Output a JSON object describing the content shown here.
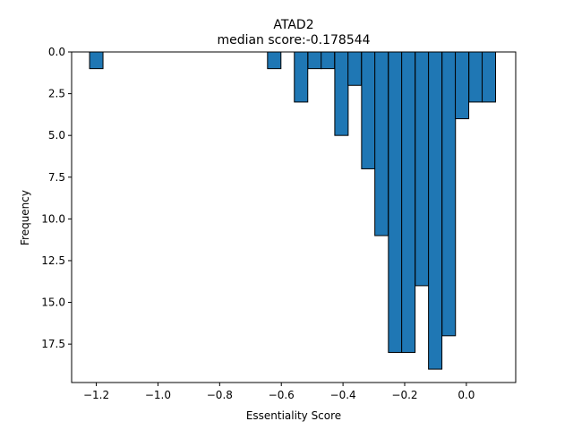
{
  "chart_data": {
    "type": "bar",
    "title": "ATAD2",
    "subtitle": "median score:-0.178544",
    "xlabel": "Essentiality Score",
    "ylabel": "Frequency",
    "xlim": [
      -1.28,
      0.16
    ],
    "ylim": [
      19.8,
      0
    ],
    "y_inverted": true,
    "bar_color": "#1f77b4",
    "bar_edge_color": "#000000",
    "bin_width": 0.0435,
    "bins": [
      {
        "x": -1.2,
        "count": 1
      },
      {
        "x": -0.623,
        "count": 1
      },
      {
        "x": -0.536,
        "count": 3
      },
      {
        "x": -0.492,
        "count": 1
      },
      {
        "x": -0.449,
        "count": 1
      },
      {
        "x": -0.405,
        "count": 5
      },
      {
        "x": -0.362,
        "count": 2
      },
      {
        "x": -0.318,
        "count": 7
      },
      {
        "x": -0.275,
        "count": 11
      },
      {
        "x": -0.231,
        "count": 18
      },
      {
        "x": -0.188,
        "count": 18
      },
      {
        "x": -0.144,
        "count": 14
      },
      {
        "x": -0.101,
        "count": 19
      },
      {
        "x": -0.057,
        "count": 17
      },
      {
        "x": -0.014,
        "count": 4
      },
      {
        "x": 0.03,
        "count": 3
      },
      {
        "x": 0.073,
        "count": 3
      }
    ],
    "x_ticks": [
      {
        "value": -1.2,
        "label": "−1.2"
      },
      {
        "value": -1.0,
        "label": "−1.0"
      },
      {
        "value": -0.8,
        "label": "−0.8"
      },
      {
        "value": -0.6,
        "label": "−0.6"
      },
      {
        "value": -0.4,
        "label": "−0.4"
      },
      {
        "value": -0.2,
        "label": "−0.2"
      },
      {
        "value": 0.0,
        "label": "0.0"
      }
    ],
    "y_ticks": [
      {
        "value": 0,
        "label": "0.0"
      },
      {
        "value": 2.5,
        "label": "2.5"
      },
      {
        "value": 5,
        "label": "5.0"
      },
      {
        "value": 7.5,
        "label": "7.5"
      },
      {
        "value": 10,
        "label": "10.0"
      },
      {
        "value": 12.5,
        "label": "12.5"
      },
      {
        "value": 15,
        "label": "15.0"
      },
      {
        "value": 17.5,
        "label": "17.5"
      }
    ]
  }
}
